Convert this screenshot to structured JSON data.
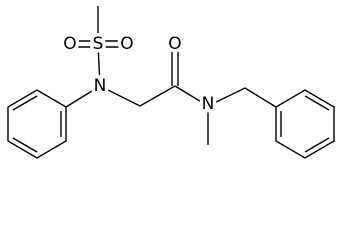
{
  "atoms": [
    "O",
    "S",
    "O",
    "N",
    "O",
    "N"
  ]
}
